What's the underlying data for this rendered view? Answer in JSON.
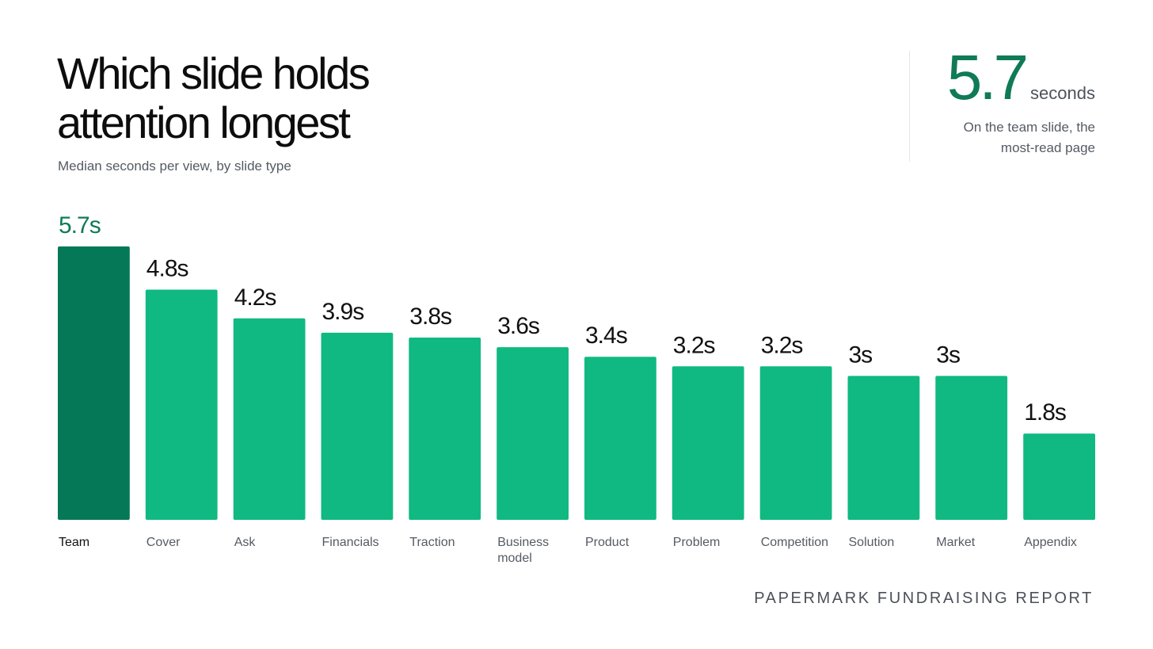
{
  "title": "Which slide holds\nattention longest",
  "subtitle": "Median seconds per view, by slide type",
  "stat": {
    "value": "5.7",
    "unit": "seconds",
    "note": "On the team slide, the most-read page"
  },
  "footer": "PAPERMARK FUNDRAISING REPORT",
  "colors": {
    "highlight_bar": "#047857",
    "bar": "#10b981",
    "highlight_label": "#0f7b56",
    "label": "#111111",
    "category": "#555b63"
  },
  "chart_data": {
    "type": "bar",
    "title": "Which slide holds attention longest",
    "subtitle": "Median seconds per view, by slide type",
    "categories": [
      "Team",
      "Cover",
      "Ask",
      "Financials",
      "Traction",
      "Business\nmodel",
      "Product",
      "Problem",
      "Competition",
      "Solution",
      "Market",
      "Appendix"
    ],
    "values": [
      5.7,
      4.8,
      4.2,
      3.9,
      3.8,
      3.6,
      3.4,
      3.2,
      3.2,
      3,
      3,
      1.8
    ],
    "labels": [
      "5.7s",
      "4.8s",
      "4.2s",
      "3.9s",
      "3.8s",
      "3.6s",
      "3.4s",
      "3.2s",
      "3.2s",
      "3s",
      "3s",
      "1.8s"
    ],
    "highlight_index": 0,
    "xlabel": "",
    "ylabel": "",
    "ylim": [
      0,
      5.7
    ],
    "grid": false,
    "legend": "none"
  }
}
